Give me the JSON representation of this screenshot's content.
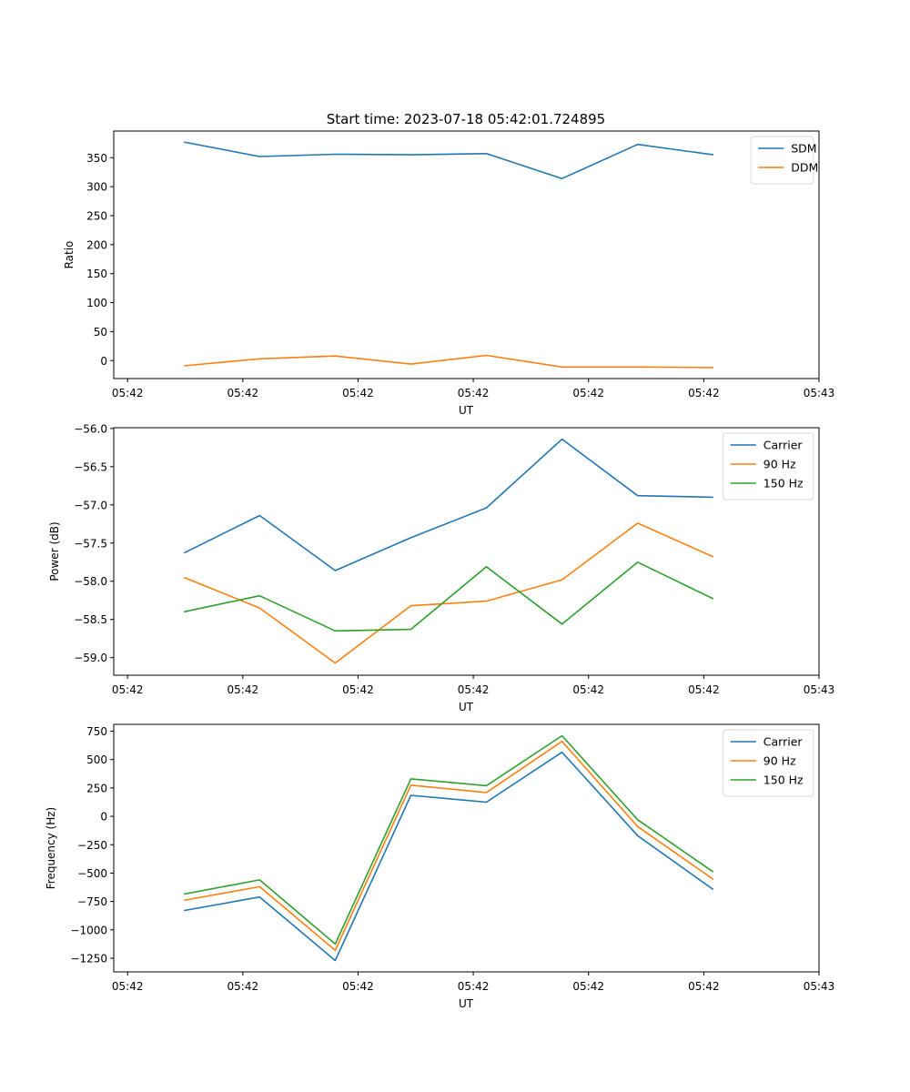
{
  "figure_title": "Start time: 2023-07-18 05:42:01.724895",
  "chart_data": [
    {
      "type": "line",
      "title": "Start time: 2023-07-18 05:42:01.724895",
      "xlabel": "UT",
      "ylabel": "Ratio",
      "x": [
        0.49,
        1.146,
        1.802,
        2.458,
        3.114,
        3.77,
        4.426,
        5.082
      ],
      "xlim": [
        -0.12,
        6.0
      ],
      "xticks": [
        0,
        1,
        2,
        3,
        4,
        5,
        6
      ],
      "xtick_labels": [
        "05:42",
        "05:42",
        "05:42",
        "05:42",
        "05:42",
        "05:42",
        "05:43"
      ],
      "ylim": [
        -31,
        396
      ],
      "yticks": [
        0,
        50,
        100,
        150,
        200,
        250,
        300,
        350
      ],
      "ytick_labels": [
        "0",
        "50",
        "100",
        "150",
        "200",
        "250",
        "300",
        "350"
      ],
      "legend_position": "top-right",
      "grid": false,
      "series": [
        {
          "name": "SDM",
          "color": "#1f77b4",
          "values": [
            377,
            352,
            356,
            355,
            357,
            314,
            373,
            355
          ]
        },
        {
          "name": "DDM",
          "color": "#ff7f0e",
          "values": [
            -9,
            3,
            8,
            -6,
            9,
            -11,
            -11,
            -12
          ]
        }
      ]
    },
    {
      "type": "line",
      "title": "",
      "xlabel": "UT",
      "ylabel": "Power (dB)",
      "x": [
        0.49,
        1.146,
        1.802,
        2.458,
        3.114,
        3.77,
        4.426,
        5.082
      ],
      "xlim": [
        -0.12,
        6.0
      ],
      "xticks": [
        0,
        1,
        2,
        3,
        4,
        5,
        6
      ],
      "xtick_labels": [
        "05:42",
        "05:42",
        "05:42",
        "05:42",
        "05:42",
        "05:42",
        "05:43"
      ],
      "ylim": [
        -59.23,
        -55.99
      ],
      "yticks": [
        -59.0,
        -58.5,
        -58.0,
        -57.5,
        -57.0,
        -56.5,
        -56.0
      ],
      "ytick_labels": [
        "−59.0",
        "−58.5",
        "−58.0",
        "−57.5",
        "−57.0",
        "−56.5",
        "−56.0"
      ],
      "legend_position": "top-right",
      "grid": false,
      "series": [
        {
          "name": "Carrier",
          "color": "#1f77b4",
          "values": [
            -57.63,
            -57.14,
            -57.86,
            -57.43,
            -57.04,
            -56.14,
            -56.88,
            -56.9
          ]
        },
        {
          "name": "90 Hz",
          "color": "#ff7f0e",
          "values": [
            -57.95,
            -58.35,
            -59.07,
            -58.32,
            -58.26,
            -57.98,
            -57.24,
            -57.68
          ]
        },
        {
          "name": "150 Hz",
          "color": "#2ca02c",
          "values": [
            -58.4,
            -58.19,
            -58.65,
            -58.63,
            -57.81,
            -58.56,
            -57.75,
            -58.23
          ]
        }
      ]
    },
    {
      "type": "line",
      "title": "",
      "xlabel": "UT",
      "ylabel": "Frequency (Hz)",
      "x": [
        0.49,
        1.146,
        1.802,
        2.458,
        3.114,
        3.77,
        4.426,
        5.082
      ],
      "xlim": [
        -0.12,
        6.0
      ],
      "xticks": [
        0,
        1,
        2,
        3,
        4,
        5,
        6
      ],
      "xtick_labels": [
        "05:42",
        "05:42",
        "05:42",
        "05:42",
        "05:42",
        "05:42",
        "05:43"
      ],
      "ylim": [
        -1370,
        810
      ],
      "yticks": [
        -1250,
        -1000,
        -750,
        -500,
        -250,
        0,
        250,
        500,
        750
      ],
      "ytick_labels": [
        "−1250",
        "−1000",
        "−750",
        "−500",
        "−250",
        "0",
        "250",
        "500",
        "750"
      ],
      "legend_position": "top-right",
      "grid": false,
      "series": [
        {
          "name": "Carrier",
          "color": "#1f77b4",
          "values": [
            -830,
            -710,
            -1270,
            185,
            125,
            565,
            -170,
            -645
          ]
        },
        {
          "name": "90 Hz",
          "color": "#ff7f0e",
          "values": [
            -740,
            -620,
            -1180,
            275,
            210,
            660,
            -90,
            -555
          ]
        },
        {
          "name": "150 Hz",
          "color": "#2ca02c",
          "values": [
            -685,
            -560,
            -1125,
            330,
            270,
            710,
            -30,
            -490
          ]
        }
      ]
    }
  ]
}
